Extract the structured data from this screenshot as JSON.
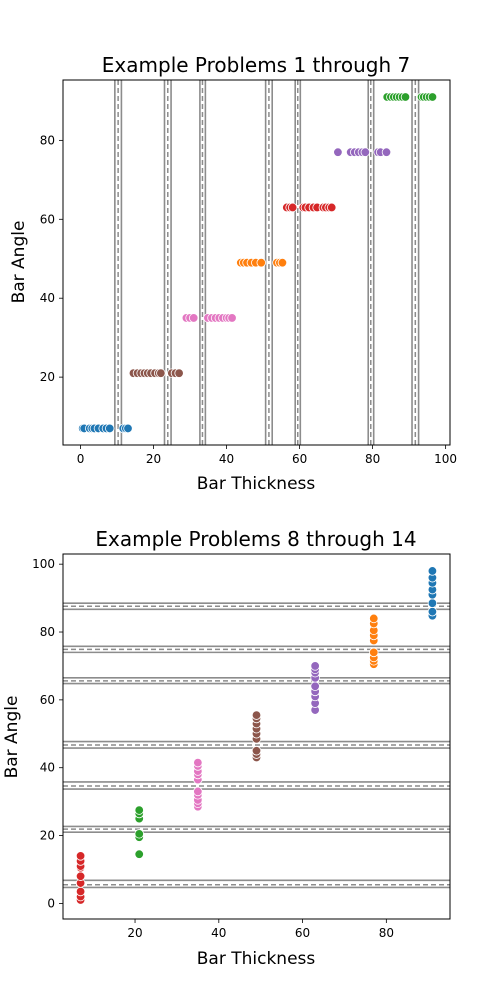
{
  "chart_data": [
    {
      "type": "scatter",
      "title": "Example Problems 1 through 7",
      "xlabel": "Bar Thickness",
      "ylabel": "Bar Angle",
      "xlim": [
        -4.8,
        101.2
      ],
      "ylim": [
        2.8,
        95.3
      ],
      "xticks": [
        0,
        20,
        40,
        60,
        80,
        100
      ],
      "yticks": [
        20,
        40,
        60,
        80
      ],
      "grid": false,
      "divider_orientation": "vertical",
      "dividers": [
        {
          "lines": [
            9.4,
            11.2
          ],
          "dashed": 10.3
        },
        {
          "lines": [
            23.0,
            24.8
          ],
          "dashed": 23.9
        },
        {
          "lines": [
            32.7,
            34.2
          ],
          "dashed": 33.4
        },
        {
          "lines": [
            50.7,
            52.5
          ],
          "dashed": 51.6
        },
        {
          "lines": [
            58.8,
            60.2
          ],
          "dashed": 59.5
        },
        {
          "lines": [
            78.8,
            80.3
          ],
          "dashed": 79.5
        },
        {
          "lines": [
            90.8,
            92.6
          ],
          "dashed": 91.7
        }
      ],
      "series": [
        {
          "color": "#1f77b4",
          "points": [
            [
              0.6,
              7
            ],
            [
              1.0,
              7
            ],
            [
              2.5,
              7
            ],
            [
              3.2,
              7
            ],
            [
              3.8,
              7
            ],
            [
              4.9,
              7
            ],
            [
              6.2,
              7
            ],
            [
              7.1,
              7
            ],
            [
              8.0,
              7
            ],
            [
              11.7,
              7
            ],
            [
              12.4,
              7
            ],
            [
              13.0,
              7
            ]
          ]
        },
        {
          "color": "#8c564b",
          "points": [
            [
              14.5,
              21
            ],
            [
              15.6,
              21
            ],
            [
              16.6,
              21
            ],
            [
              17.5,
              21
            ],
            [
              18.4,
              21
            ],
            [
              19.3,
              21
            ],
            [
              20.4,
              21
            ],
            [
              21.4,
              21
            ],
            [
              22.0,
              21
            ],
            [
              25.0,
              21
            ],
            [
              26.0,
              21
            ],
            [
              27.0,
              21
            ]
          ]
        },
        {
          "color": "#e377c2",
          "points": [
            [
              29.0,
              35
            ],
            [
              30.0,
              35
            ],
            [
              31.0,
              35
            ],
            [
              34.9,
              35
            ],
            [
              36.0,
              35
            ],
            [
              37.0,
              35
            ],
            [
              38.0,
              35
            ],
            [
              39.0,
              35
            ],
            [
              40.0,
              35
            ],
            [
              40.7,
              35
            ],
            [
              41.5,
              35
            ]
          ]
        },
        {
          "color": "#ff7f0e",
          "points": [
            [
              43.9,
              49
            ],
            [
              44.7,
              49
            ],
            [
              45.6,
              49
            ],
            [
              46.8,
              49
            ],
            [
              48.0,
              49
            ],
            [
              49.5,
              49
            ],
            [
              53.8,
              49
            ],
            [
              54.6,
              49
            ],
            [
              55.3,
              49
            ]
          ]
        },
        {
          "color": "#d62728",
          "points": [
            [
              56.5,
              63
            ],
            [
              57.4,
              63
            ],
            [
              58.1,
              63
            ],
            [
              61.0,
              63
            ],
            [
              61.6,
              63
            ],
            [
              62.6,
              63
            ],
            [
              63.8,
              63
            ],
            [
              64.8,
              63
            ],
            [
              66.5,
              63
            ],
            [
              67.2,
              63
            ],
            [
              68.1,
              63
            ],
            [
              68.8,
              63
            ]
          ]
        },
        {
          "color": "#9467bd",
          "points": [
            [
              70.5,
              77
            ],
            [
              74.0,
              77
            ],
            [
              75.1,
              77
            ],
            [
              76.2,
              77
            ],
            [
              77.2,
              77
            ],
            [
              78.0,
              77
            ],
            [
              81.5,
              77
            ],
            [
              82.2,
              77
            ],
            [
              83.8,
              77
            ]
          ]
        },
        {
          "color": "#2ca02c",
          "points": [
            [
              84.0,
              91
            ],
            [
              85.0,
              91
            ],
            [
              85.8,
              91
            ],
            [
              86.6,
              91
            ],
            [
              87.4,
              91
            ],
            [
              88.2,
              91
            ],
            [
              89.0,
              91
            ],
            [
              93.4,
              91
            ],
            [
              94.0,
              91
            ],
            [
              94.8,
              91
            ],
            [
              95.6,
              91
            ],
            [
              96.4,
              91
            ]
          ]
        }
      ]
    },
    {
      "type": "scatter",
      "title": "Example Problems 8 through 14",
      "xlabel": "Bar Thickness",
      "ylabel": "Bar Angle",
      "xlim": [
        2.8,
        95.2
      ],
      "ylim": [
        -4.6,
        103.0
      ],
      "xticks": [
        20,
        40,
        60,
        80
      ],
      "yticks": [
        0,
        20,
        40,
        60,
        80,
        100
      ],
      "grid": false,
      "divider_orientation": "horizontal",
      "dividers": [
        {
          "lines": [
            4.7,
            6.8
          ],
          "dashed": 5.5
        },
        {
          "lines": [
            21.0,
            22.7
          ],
          "dashed": 21.9
        },
        {
          "lines": [
            33.7,
            35.8
          ],
          "dashed": 34.6
        },
        {
          "lines": [
            45.8,
            47.7
          ],
          "dashed": 46.7
        },
        {
          "lines": [
            64.8,
            66.5
          ],
          "dashed": 65.6
        },
        {
          "lines": [
            74.0,
            75.8
          ],
          "dashed": 74.9
        },
        {
          "lines": [
            86.7,
            88.5
          ],
          "dashed": 87.6
        }
      ],
      "series": [
        {
          "color": "#d62728",
          "points": [
            [
              7,
              1
            ],
            [
              7,
              2
            ],
            [
              7,
              3.5
            ],
            [
              7,
              6
            ],
            [
              7,
              8
            ],
            [
              7,
              10.5
            ],
            [
              7,
              11
            ],
            [
              7,
              12.5
            ],
            [
              7,
              14
            ]
          ]
        },
        {
          "color": "#2ca02c",
          "points": [
            [
              21,
              14.5
            ],
            [
              21,
              19.5
            ],
            [
              21,
              20.5
            ],
            [
              21,
              25
            ],
            [
              21,
              26.5
            ],
            [
              21,
              27.5
            ]
          ]
        },
        {
          "color": "#e377c2",
          "points": [
            [
              35,
              28.5
            ],
            [
              35,
              29.5
            ],
            [
              35,
              30.5
            ],
            [
              35,
              32
            ],
            [
              35,
              33
            ],
            [
              35,
              36.5
            ],
            [
              35,
              38
            ],
            [
              35,
              39
            ],
            [
              35,
              40.5
            ],
            [
              35,
              41.5
            ]
          ]
        },
        {
          "color": "#8c564b",
          "points": [
            [
              49,
              43
            ],
            [
              49,
              44
            ],
            [
              49,
              45
            ],
            [
              49,
              48.5
            ],
            [
              49,
              50
            ],
            [
              49,
              51.5
            ],
            [
              49,
              53
            ],
            [
              49,
              54.5
            ],
            [
              49,
              55.5
            ]
          ]
        },
        {
          "color": "#9467bd",
          "points": [
            [
              63,
              57
            ],
            [
              63,
              59
            ],
            [
              63,
              61
            ],
            [
              63,
              62.5
            ],
            [
              63,
              64
            ],
            [
              63,
              66.5
            ],
            [
              63,
              68
            ],
            [
              63,
              69
            ],
            [
              63,
              70
            ]
          ]
        },
        {
          "color": "#ff7f0e",
          "points": [
            [
              77,
              70.5
            ],
            [
              77,
              71.5
            ],
            [
              77,
              72.5
            ],
            [
              77,
              74
            ],
            [
              77,
              77.5
            ],
            [
              77,
              79
            ],
            [
              77,
              80.5
            ],
            [
              77,
              82.5
            ],
            [
              77,
              84
            ]
          ]
        },
        {
          "color": "#1f77b4",
          "points": [
            [
              91,
              84.8
            ],
            [
              91,
              86
            ],
            [
              91,
              88.5
            ],
            [
              91,
              91
            ],
            [
              91,
              92.5
            ],
            [
              91,
              94.5
            ],
            [
              91,
              96
            ],
            [
              91,
              98
            ]
          ]
        }
      ]
    }
  ]
}
